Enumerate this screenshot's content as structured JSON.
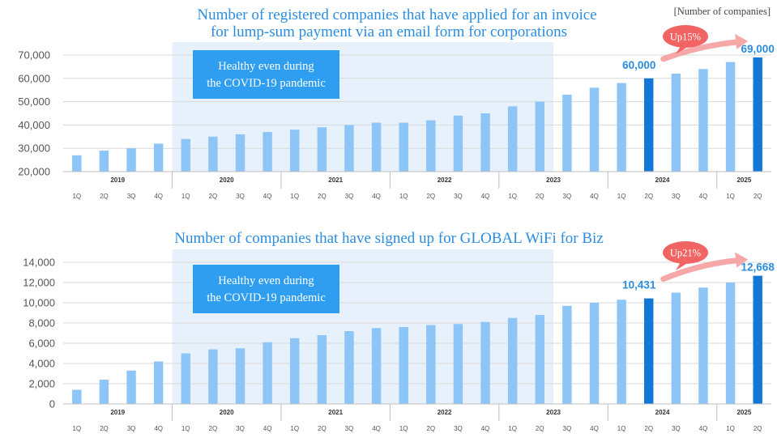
{
  "unit_label": "[Number of companies]",
  "colors": {
    "bar": "#8ec5f7",
    "highlight_bar": "#1277d6",
    "band": "#e6f1fc",
    "annotation_box": "#2f9ef0",
    "up_bubble": "#f06464",
    "title": "#2a8de0"
  },
  "chart_data": [
    {
      "type": "bar",
      "title": "Number of registered companies that have applied for an invoice",
      "title2": "for lump-sum payment via an email form for corporations",
      "quarters": [
        "1Q",
        "2Q",
        "3Q",
        "4Q",
        "1Q",
        "2Q",
        "3Q",
        "4Q",
        "1Q",
        "2Q",
        "3Q",
        "4Q",
        "1Q",
        "2Q",
        "3Q",
        "4Q",
        "1Q",
        "2Q",
        "3Q",
        "4Q",
        "1Q",
        "2Q",
        "3Q",
        "4Q",
        "1Q",
        "2Q"
      ],
      "years": [
        {
          "label": "2019",
          "start": 0,
          "count": 4
        },
        {
          "label": "2020",
          "start": 4,
          "count": 4
        },
        {
          "label": "2021",
          "start": 8,
          "count": 4
        },
        {
          "label": "2022",
          "start": 12,
          "count": 4
        },
        {
          "label": "2023",
          "start": 16,
          "count": 4
        },
        {
          "label": "2024",
          "start": 20,
          "count": 4
        },
        {
          "label": "2025",
          "start": 24,
          "count": 2
        }
      ],
      "values": [
        27000,
        29000,
        30000,
        32000,
        34000,
        35000,
        36000,
        37000,
        38000,
        39000,
        40000,
        41000,
        41000,
        42000,
        44000,
        45000,
        48000,
        50000,
        53000,
        56000,
        58000,
        60000,
        62000,
        64000,
        67000,
        69000
      ],
      "highlight": [
        21,
        25
      ],
      "ylim": [
        20000,
        70000
      ],
      "yticks": [
        "20,000",
        "30,000",
        "40,000",
        "50,000",
        "60,000",
        "70,000"
      ],
      "band_range": [
        4,
        17
      ],
      "annotation": [
        "Healthy even during",
        "the COVID-19 pandemic"
      ],
      "data_labels": [
        {
          "index": 21,
          "text": "60,000"
        },
        {
          "index": 25,
          "text": "69,000"
        }
      ],
      "growth_label": "Up15%"
    },
    {
      "type": "bar",
      "title": "Number of companies that have signed up for GLOBAL WiFi for Biz",
      "title2": "",
      "quarters": [
        "1Q",
        "2Q",
        "3Q",
        "4Q",
        "1Q",
        "2Q",
        "3Q",
        "4Q",
        "1Q",
        "2Q",
        "3Q",
        "4Q",
        "1Q",
        "2Q",
        "3Q",
        "4Q",
        "1Q",
        "2Q",
        "3Q",
        "4Q",
        "1Q",
        "2Q",
        "3Q",
        "4Q",
        "1Q",
        "2Q"
      ],
      "years": [
        {
          "label": "2019",
          "start": 0,
          "count": 4
        },
        {
          "label": "2020",
          "start": 4,
          "count": 4
        },
        {
          "label": "2021",
          "start": 8,
          "count": 4
        },
        {
          "label": "2022",
          "start": 12,
          "count": 4
        },
        {
          "label": "2023",
          "start": 16,
          "count": 4
        },
        {
          "label": "2024",
          "start": 20,
          "count": 4
        },
        {
          "label": "2025",
          "start": 24,
          "count": 2
        }
      ],
      "values": [
        1400,
        2400,
        3300,
        4200,
        5000,
        5400,
        5500,
        6100,
        6500,
        6800,
        7200,
        7500,
        7600,
        7800,
        7900,
        8100,
        8500,
        8800,
        9700,
        10000,
        10300,
        10431,
        11000,
        11500,
        12000,
        12668
      ],
      "highlight": [
        21,
        25
      ],
      "ylim": [
        0,
        14000
      ],
      "yticks": [
        "0",
        "2,000",
        "4,000",
        "6,000",
        "8,000",
        "10,000",
        "12,000",
        "14,000"
      ],
      "band_range": [
        4,
        17
      ],
      "annotation": [
        "Healthy even during",
        "the COVID-19 pandemic"
      ],
      "data_labels": [
        {
          "index": 21,
          "text": "10,431"
        },
        {
          "index": 25,
          "text": "12,668"
        }
      ],
      "growth_label": "Up21%"
    }
  ]
}
